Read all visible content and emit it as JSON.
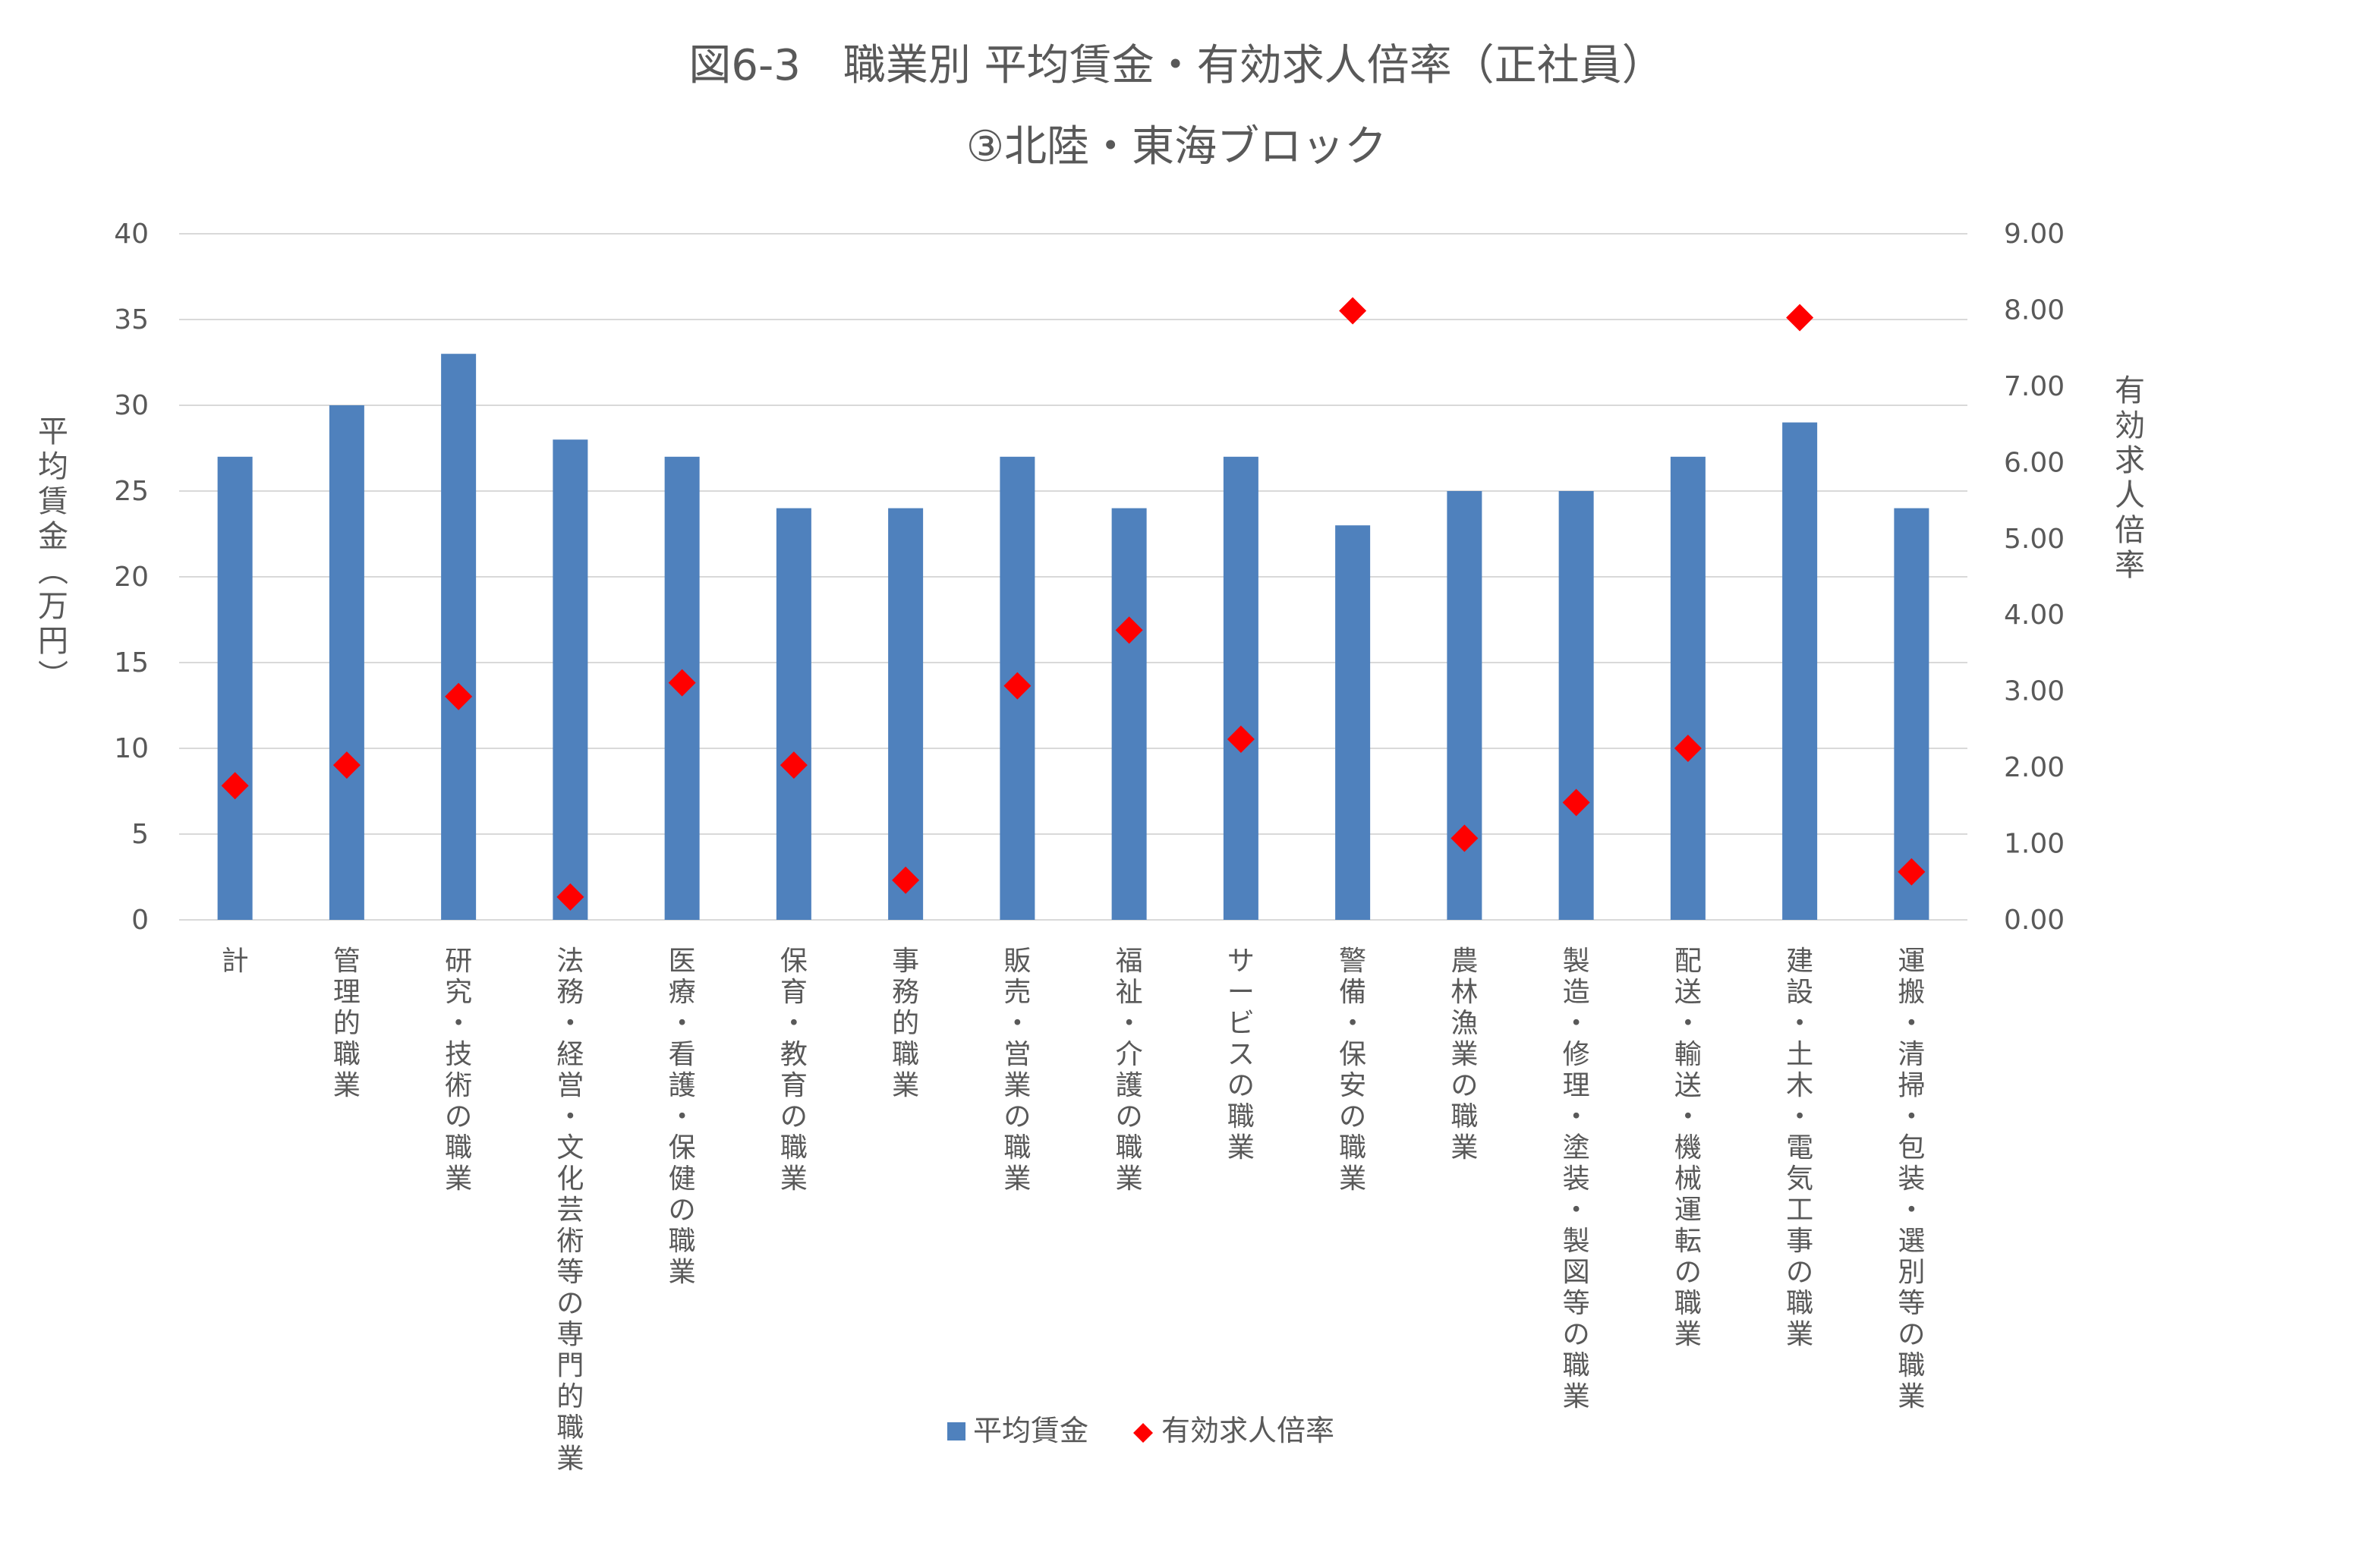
{
  "chart_data": {
    "type": "bar",
    "title": "図6-3　職業別 平均賃金・有効求人倍率（正社員）",
    "subtitle": "③北陸・東海ブロック",
    "categories": [
      "計",
      "管理的職業",
      "研究・技術の職業",
      "法務・経営・文化芸術等の専門的職業",
      "医療・看護・保健の職業",
      "保育・教育の職業",
      "事務的職業",
      "販売・営業の職業",
      "福祉・介護の職業",
      "サービスの職業",
      "警備・保安の職業",
      "農林漁業の職業",
      "製造・修理・塗装・製図等の職業",
      "配送・輸送・機械運転の職業",
      "建設・土木・電気工事の職業",
      "運搬・清掃・包装・選別等の職業"
    ],
    "series": [
      {
        "name": "平均賃金",
        "type": "bar",
        "axis": "left",
        "color": "#4F81BD",
        "values": [
          27,
          30,
          33,
          28,
          27,
          24,
          24,
          27,
          24,
          27,
          23,
          25,
          25,
          27,
          29,
          24
        ]
      },
      {
        "name": "有効求人倍率",
        "type": "scatter",
        "marker": "diamond",
        "axis": "right",
        "color": "#FF0000",
        "values": [
          1.76,
          2.03,
          2.93,
          0.3,
          3.11,
          2.03,
          0.52,
          3.07,
          3.8,
          2.37,
          7.99,
          1.07,
          1.54,
          2.25,
          7.9,
          0.63
        ]
      }
    ],
    "ylabel": "平均賃金（万円）",
    "y2label": "有効求人倍率",
    "ylim": [
      0,
      40
    ],
    "y2lim": [
      0,
      9
    ],
    "yticks": [
      "0",
      "5",
      "10",
      "15",
      "20",
      "25",
      "30",
      "35",
      "40"
    ],
    "y2ticks": [
      "0.00",
      "1.00",
      "2.00",
      "3.00",
      "4.00",
      "5.00",
      "6.00",
      "7.00",
      "8.00",
      "9.00"
    ],
    "grid": true,
    "legend": "bottom-center"
  }
}
